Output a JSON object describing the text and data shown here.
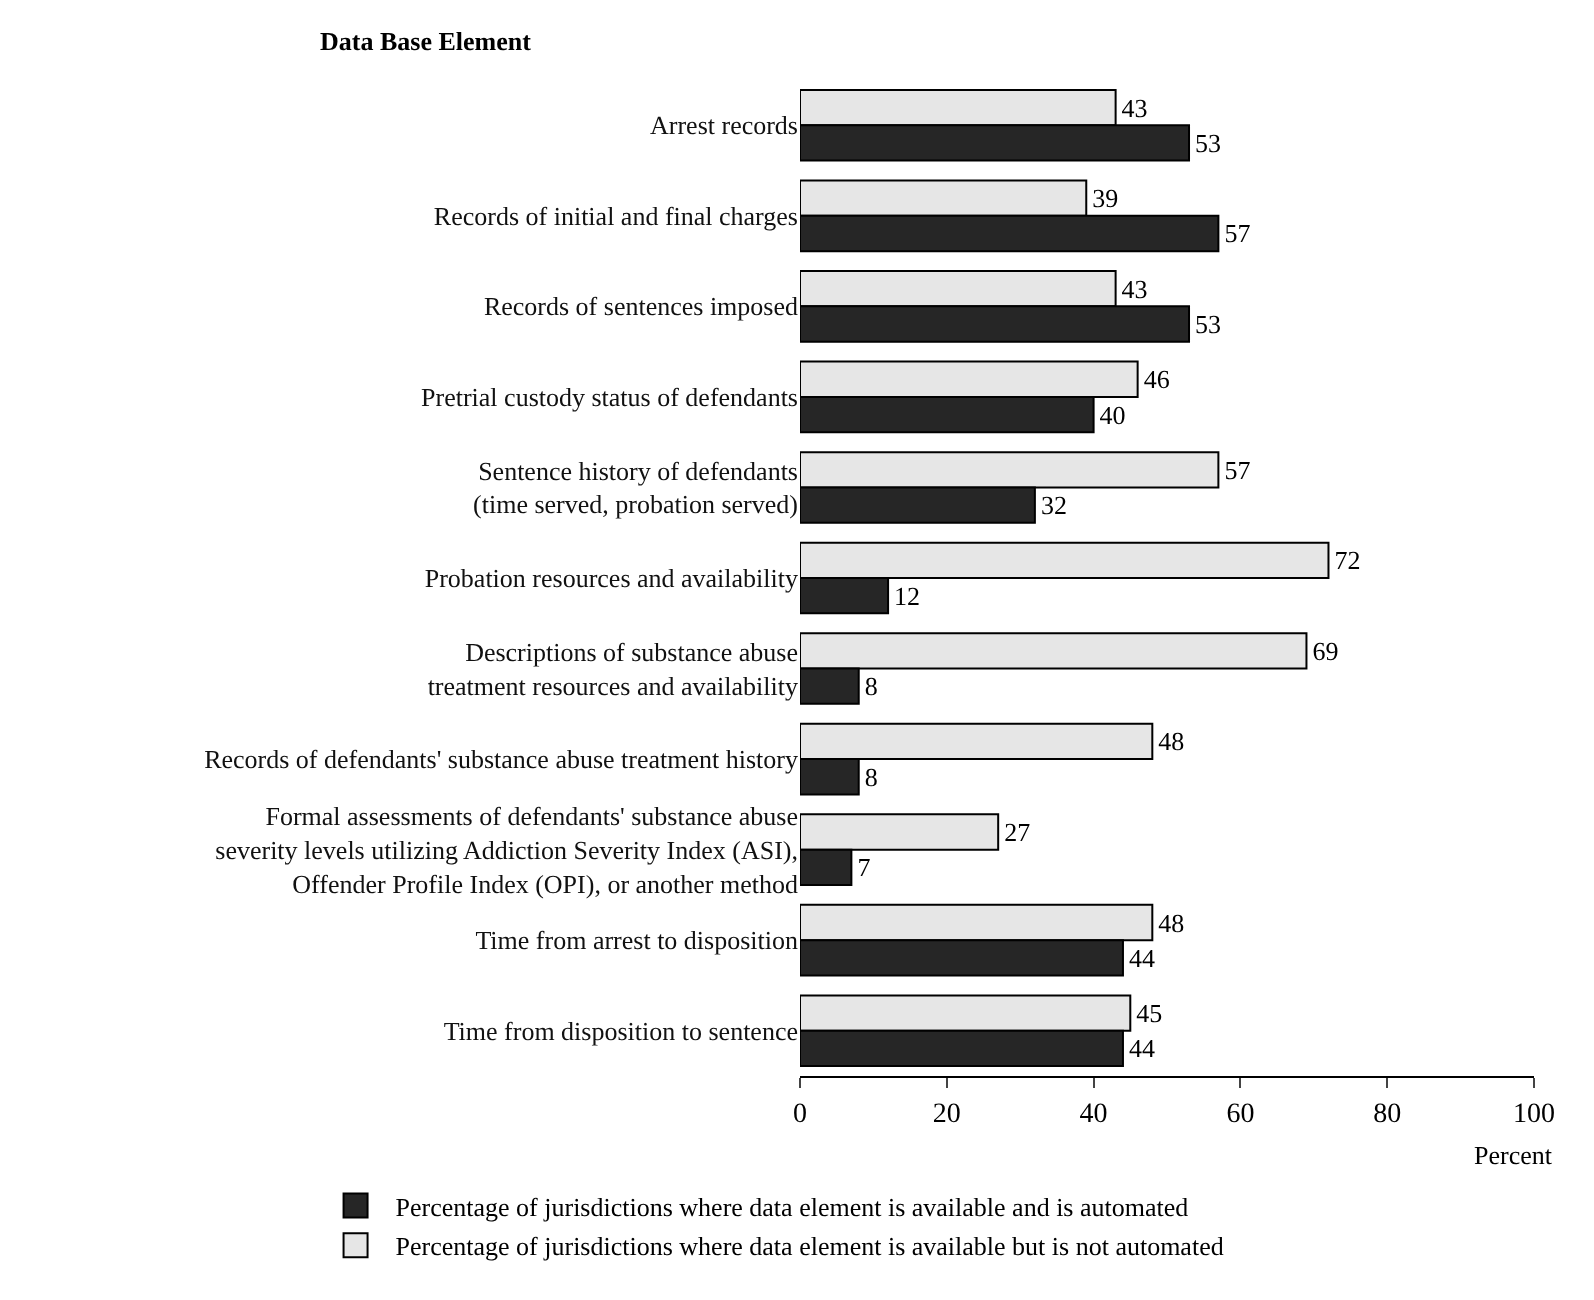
{
  "chart_data": {
    "type": "bar",
    "orientation": "horizontal",
    "ylabel": "Data Base Element",
    "xlabel": "Percent",
    "categories": [
      "Arrest records",
      "Records of initial and final charges",
      "Records of sentences imposed",
      "Pretrial custody status of defendants",
      "Sentence history of defendants\n(time served, probation served)",
      "Probation resources and availability",
      "Descriptions of substance abuse\ntreatment resources and availability",
      "Records of defendants' substance abuse treatment history",
      "Formal assessments of defendants' substance abuse\nseverity levels utilizing Addiction Severity Index (ASI),\nOffender Profile Index (OPI), or another method",
      "Time from arrest to disposition",
      "Time from disposition to sentence"
    ],
    "series": [
      {
        "name": "Percentage of jurisdictions where data element is available but is not automated",
        "color": "#e6e6e6",
        "values": [
          43,
          39,
          43,
          46,
          57,
          72,
          69,
          48,
          27,
          48,
          45
        ]
      },
      {
        "name": "Percentage of jurisdictions where data element is available and is automated",
        "color": "#262626",
        "values": [
          53,
          57,
          53,
          40,
          32,
          12,
          8,
          8,
          7,
          44,
          44
        ]
      }
    ],
    "xlim": [
      0,
      100
    ],
    "xticks": [
      0,
      20,
      40,
      60,
      80,
      100
    ],
    "grid": false,
    "legend": "bottom",
    "data_labels": true
  }
}
